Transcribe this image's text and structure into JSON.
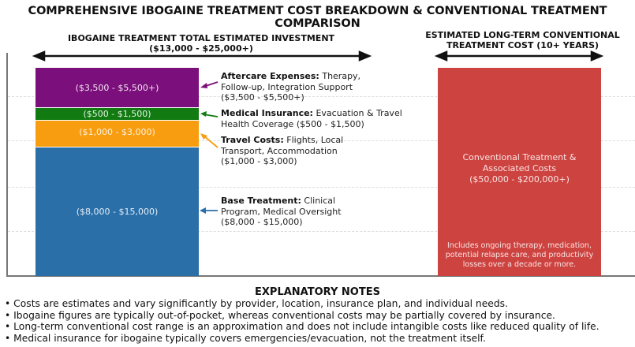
{
  "chart_data": {
    "type": "bar",
    "title": "COMPREHENSIVE IBOGAINE TREATMENT COST BREAKDOWN & CONVENTIONAL TREATMENT COMPARISON",
    "ibogaine": {
      "header": "IBOGAINE TREATMENT TOTAL ESTIMATED INVESTMENT",
      "header_range": "($13,000 - $25,000+)",
      "segments": [
        {
          "name": "Aftercare Expenses:",
          "desc": "Therapy, Follow-up, Integration Support",
          "label": "($3,500 - $5,500+)",
          "min": 3500,
          "max": 5500,
          "color": "#7b0f7b"
        },
        {
          "name": "Medical Insurance:",
          "desc": "Evacuation & Travel Health Coverage ($500 - $1,500)",
          "label": "($500 - $1,500)",
          "min": 500,
          "max": 1500,
          "color": "#117a11"
        },
        {
          "name": "Travel Costs:",
          "desc": "Flights, Local Transport, Accommodation",
          "label": "($1,000 - $3,000)",
          "min": 1000,
          "max": 3000,
          "color": "#f89c10"
        },
        {
          "name": "Base Treatment:",
          "desc": "Clinical Program, Medical Oversight",
          "label": "($8,000 - $15,000)",
          "min": 8000,
          "max": 15000,
          "color": "#2a6fa8"
        }
      ]
    },
    "conventional": {
      "header1": "ESTIMATED LONG-TERM CONVENTIONAL",
      "header2": "TREATMENT COST (10+ YEARS)",
      "label1": "Conventional Treatment &",
      "label2": "Associated Costs",
      "label3": "($50,000 - $200,000+)",
      "min": 50000,
      "max": 200000,
      "note1": "Includes ongoing therapy, medication,",
      "note2": "potential relapse care, and productivity",
      "note3": "losses over a decade or more.",
      "color": "#cc4340"
    },
    "grid": true
  },
  "notes": {
    "title": "EXPLANATORY NOTES",
    "items": [
      "Costs are estimates and vary significantly by provider, location, insurance plan, and individual needs.",
      "Ibogaine figures are typically out-of-pocket, whereas conventional costs may be partially covered by insurance.",
      "Long-term conventional cost range is an approximation and does not include intangible costs like reduced quality of life.",
      "Medical insurance for ibogaine typically covers emergencies/evacuation, not the treatment itself."
    ]
  }
}
